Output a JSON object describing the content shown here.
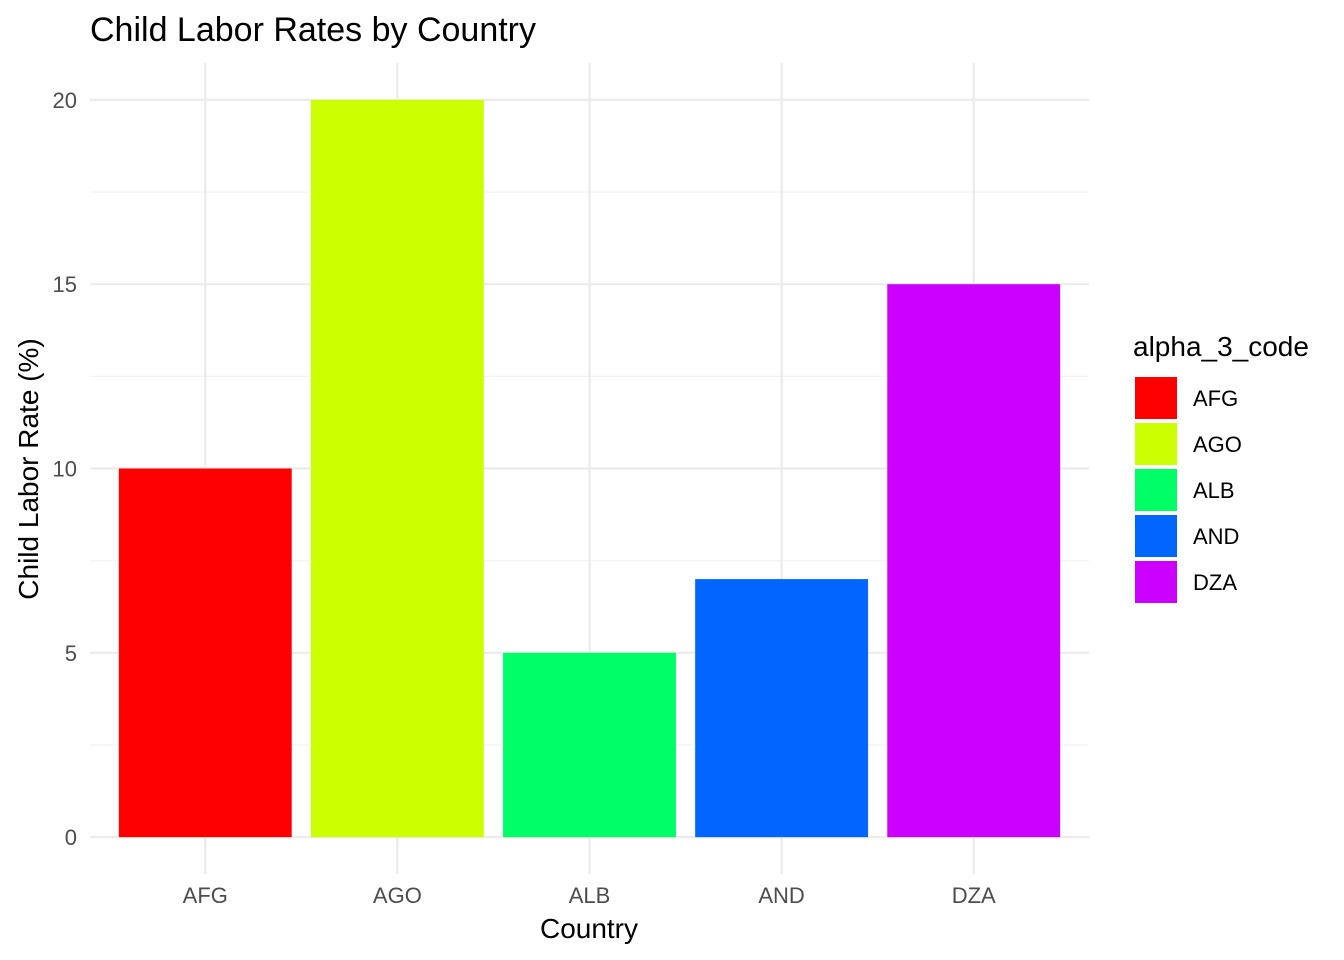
{
  "chart_data": {
    "type": "bar",
    "title": "Child Labor Rates by Country",
    "xlabel": "Country",
    "ylabel": "Child Labor Rate (%)",
    "categories": [
      "AFG",
      "AGO",
      "ALB",
      "AND",
      "DZA"
    ],
    "values": [
      10,
      20,
      5,
      7,
      15
    ],
    "colors": [
      "#FF0000",
      "#CCFF00",
      "#00FF66",
      "#0066FF",
      "#CC00FF"
    ],
    "ylim": [
      -1,
      21
    ],
    "yticks": [
      0,
      5,
      10,
      15,
      20
    ],
    "grid": true,
    "legend": {
      "title": "alpha_3_code",
      "position": "right",
      "items": [
        "AFG",
        "AGO",
        "ALB",
        "AND",
        "DZA"
      ]
    }
  }
}
